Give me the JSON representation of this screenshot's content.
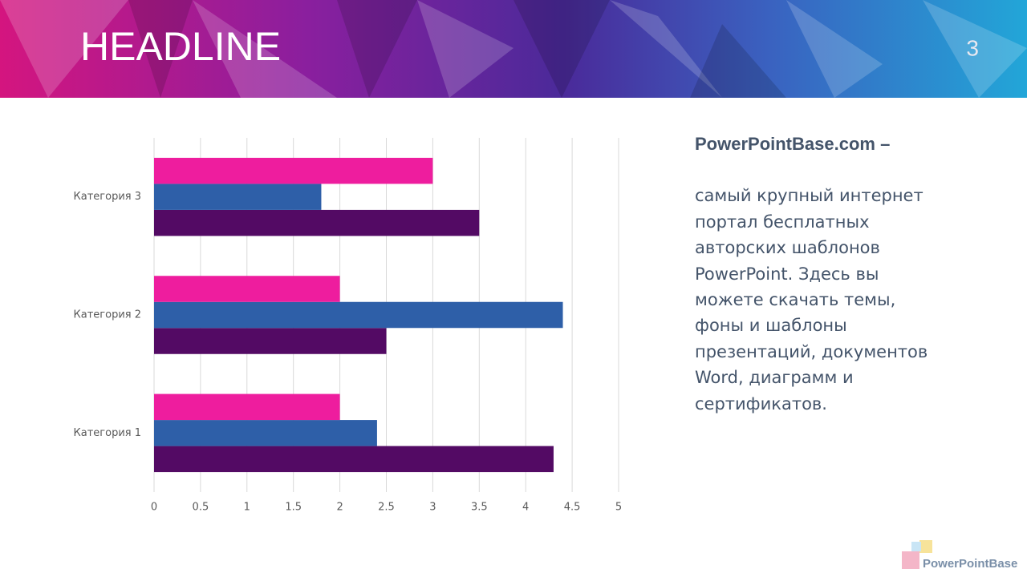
{
  "slide": {
    "title": "HEADLINE",
    "page_number": "3",
    "text_heading": "PowerPointBase.com –",
    "text_lines": [
      "самый крупный интернет",
      "портал бесплатных",
      "авторских шаблонов",
      "PowerPoint.  Здесь вы",
      "можете скачать темы,",
      "фоны и шаблоны",
      "презентаций, документов",
      "Word, диаграмм и",
      "сертификатов."
    ],
    "logo": "PowerPointBase"
  },
  "chart_data": {
    "type": "hbar",
    "categories": [
      "Категория 1",
      "Категория 2",
      "Категория 3"
    ],
    "series": [
      {
        "color": "#530a64",
        "values": [
          4.3,
          2.5,
          3.5
        ]
      },
      {
        "color": "#2e5fa8",
        "values": [
          2.4,
          4.4,
          1.8
        ]
      },
      {
        "color": "#ee1d9e",
        "values": [
          2,
          2,
          3
        ]
      }
    ],
    "xlim": [
      0,
      5
    ],
    "xticks": [
      0,
      0.5,
      1,
      1.5,
      2,
      2.5,
      3,
      3.5,
      4,
      4.5,
      5
    ],
    "grid": true
  }
}
